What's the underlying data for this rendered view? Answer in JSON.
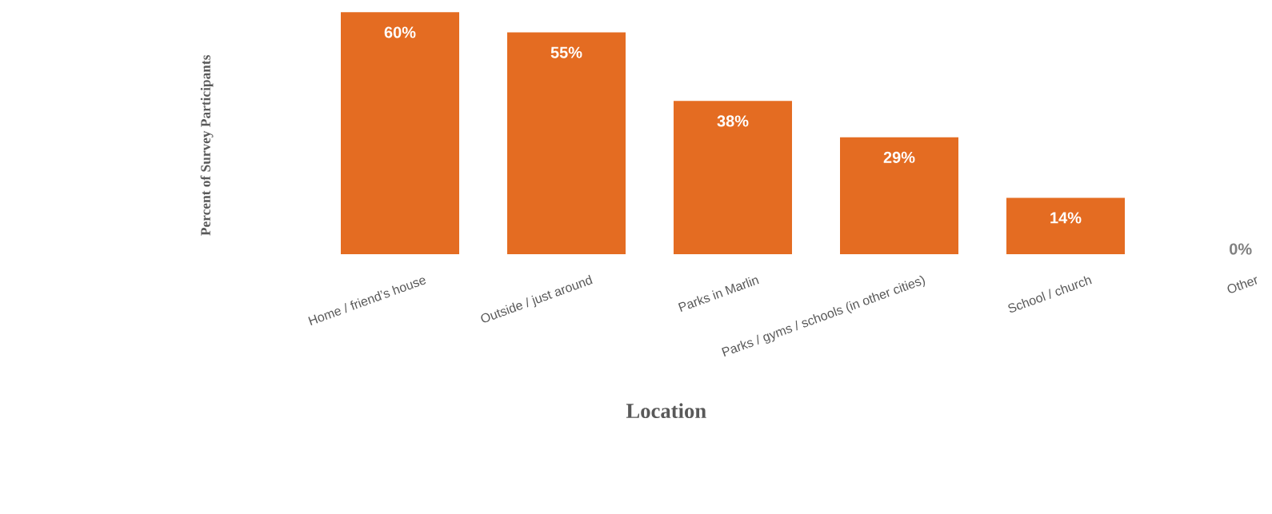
{
  "chart_data": {
    "type": "bar",
    "xlabel": "Location",
    "ylabel": "Percent of Survey Participants",
    "categories": [
      "Home / friend’s house",
      "Outside / just around",
      "Parks in Marlin",
      "Parks / gyms / schools (in other cities)",
      "School / church",
      "Other"
    ],
    "values": [
      60,
      55,
      38,
      29,
      14,
      0
    ],
    "value_labels": [
      "60%",
      "55%",
      "38%",
      "29%",
      "14%",
      "0%"
    ],
    "color": "#e46c22",
    "ylim": [
      0,
      60
    ]
  }
}
